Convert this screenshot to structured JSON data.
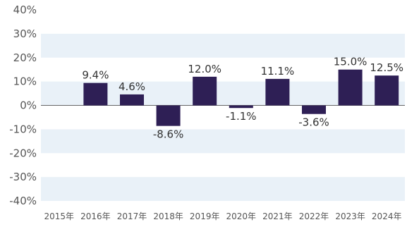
{
  "chart_data": {
    "type": "bar",
    "categories": [
      "2015年",
      "2016年",
      "2017年",
      "2018年",
      "2019年",
      "2020年",
      "2021年",
      "2022年",
      "2023年",
      "2024年"
    ],
    "series": [
      {
        "values": [
          0,
          9.4,
          4.6,
          -8.6,
          12.0,
          -1.1,
          11.1,
          -3.6,
          15.0,
          12.5
        ],
        "labels": [
          "",
          "9.4%",
          "4.6%",
          "-8.6%",
          "12.0%",
          "-1.1%",
          "11.1%",
          "-3.6%",
          "15.0%",
          "12.5%"
        ]
      }
    ],
    "ylim": [
      -40,
      40
    ],
    "yticks": [
      40,
      30,
      20,
      10,
      0,
      -10,
      -20,
      -30,
      -40
    ],
    "ytick_labels": [
      "40%",
      "30%",
      "20%",
      "10%",
      "0%",
      "-10%",
      "-20%",
      "-30%",
      "-40%"
    ],
    "grid": "alternating horizontal bands",
    "colors": {
      "bar": "#2e1f55",
      "band": "#e9f1f8",
      "zero_line": "#666666",
      "text": "#555555"
    }
  }
}
